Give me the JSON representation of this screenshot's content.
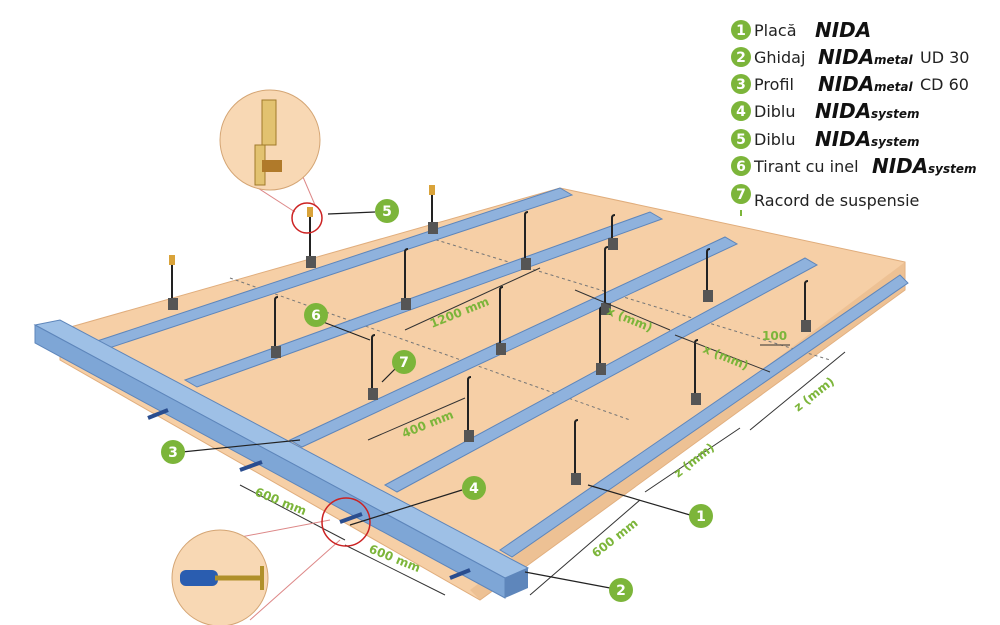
{
  "legend": [
    {
      "num": "1",
      "label": "Placă",
      "brand": "NIDA",
      "suffix": "",
      "code": ""
    },
    {
      "num": "2",
      "label": "Ghidaj",
      "brand": "NIDA",
      "suffix": "metal",
      "code": "UD 30"
    },
    {
      "num": "3",
      "label": "Profil",
      "brand": "NIDA",
      "suffix": "metal",
      "code": "CD 60"
    },
    {
      "num": "4",
      "label": "Diblu",
      "brand": "NIDA",
      "suffix": "system",
      "code": ""
    },
    {
      "num": "5",
      "label": "Diblu",
      "brand": "NIDA",
      "suffix": "system",
      "code": ""
    },
    {
      "num": "6",
      "label": "Tirant cu inel",
      "brand": "NIDA",
      "suffix": "system",
      "code": ""
    },
    {
      "num": "7",
      "label": "Racord de suspensie",
      "brand": "",
      "suffix": "",
      "code": ""
    }
  ],
  "callouts": [
    "1",
    "2",
    "3",
    "4",
    "5",
    "6",
    "7"
  ],
  "dimensions": {
    "d1200": "1200 mm",
    "d400": "400 mm",
    "d600a": "600 mm",
    "d600b": "600 mm",
    "d600c": "600 mm",
    "x1": "x (mm)",
    "x2": "x (mm)",
    "z1": "z (mm)",
    "z2": "z (mm)",
    "d100": "100"
  },
  "colors": {
    "board": "#f6cfa6",
    "board_edge": "#e8b889",
    "profile": "#8fb2dd",
    "profile_dark": "#5e86bb",
    "callout": "#7cb53a",
    "dim": "#7cb53a"
  }
}
